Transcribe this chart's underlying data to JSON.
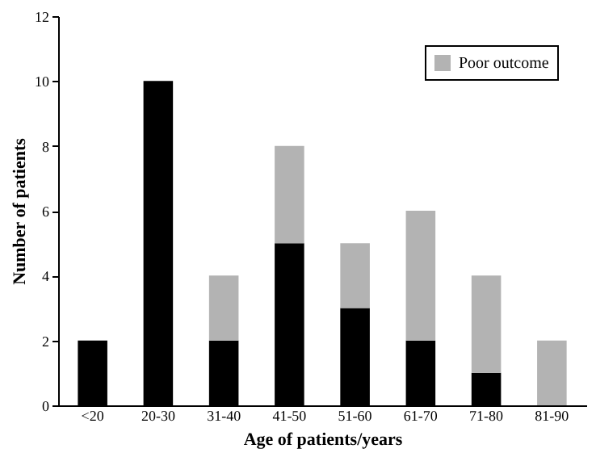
{
  "chart_data": {
    "type": "bar",
    "xlabel": "Age of patients/years",
    "ylabel": "Number of patients",
    "categories": [
      "<20",
      "20-30",
      "31-40",
      "41-50",
      "51-60",
      "61-70",
      "71-80",
      "81-90"
    ],
    "series": [
      {
        "color": "#000000",
        "values": [
          2,
          10,
          2,
          5,
          3,
          2,
          1,
          0
        ]
      },
      {
        "name": "Poor outcome",
        "color": "#b3b3b3",
        "values": [
          0,
          0,
          2,
          3,
          2,
          4,
          3,
          2
        ]
      }
    ],
    "stacked": true,
    "ylim": [
      0,
      12
    ],
    "yticks": [
      0,
      2,
      4,
      6,
      8,
      10,
      12
    ],
    "legend": "top right"
  }
}
